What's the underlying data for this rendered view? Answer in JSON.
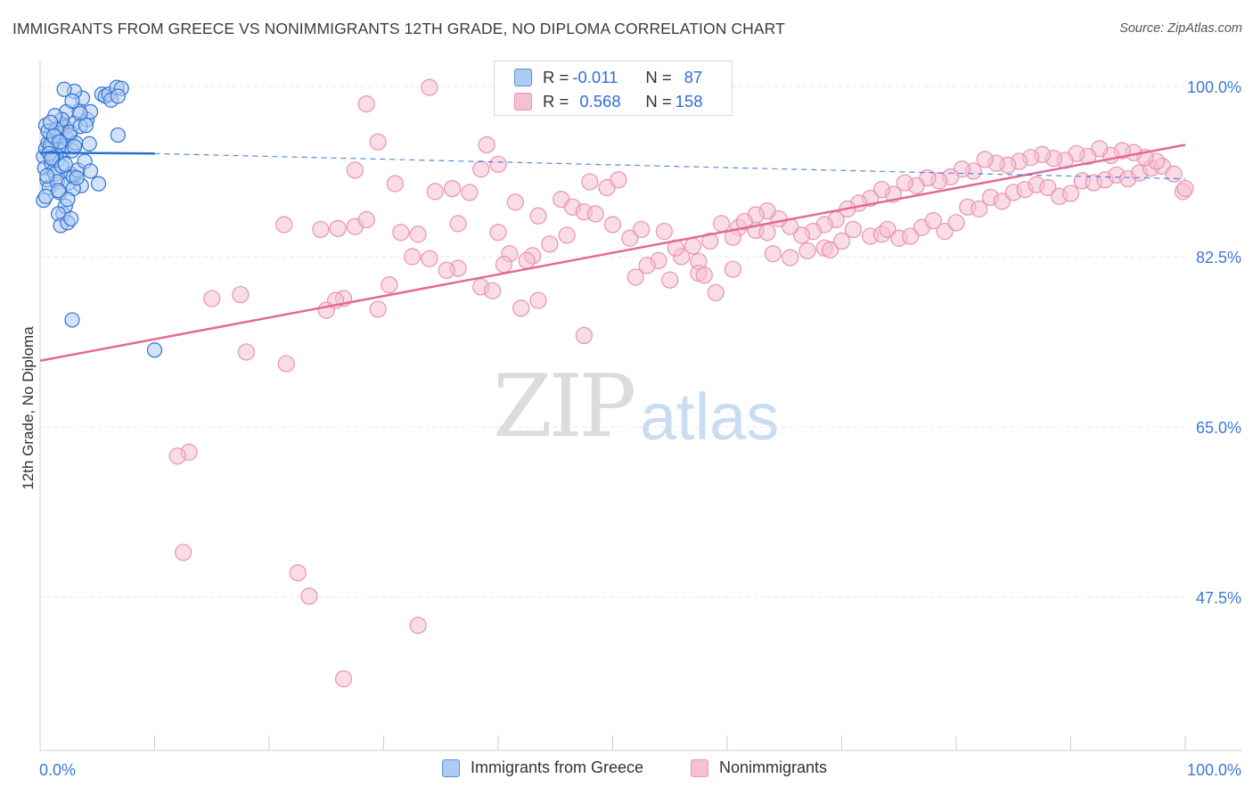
{
  "title": "IMMIGRANTS FROM GREECE VS NONIMMIGRANTS 12TH GRADE, NO DIPLOMA CORRELATION CHART",
  "source": "Source: ZipAtlas.com",
  "watermark": {
    "zip": "ZIP",
    "atlas": "atlas"
  },
  "stats": {
    "row1": {
      "r_label": "R = ",
      "r_value": "-0.011",
      "n_label": "N = ",
      "n_value": "87"
    },
    "row2": {
      "r_label": "R = ",
      "r_value": "0.568",
      "n_label": "N = ",
      "n_value": "158"
    }
  },
  "legend": {
    "series1": "Immigrants from Greece",
    "series2": "Nonimmigrants"
  },
  "colors": {
    "blue_fill": "#aecbf2",
    "blue_stroke": "#2f74d0",
    "blue_line": "#2a6fcf",
    "pink_fill": "#f6c0d2",
    "pink_stroke": "#e893b2",
    "pink_line": "#e36a96",
    "tick_label": "#3b78d8",
    "grid": "#e6e6e6"
  },
  "chart_data": {
    "type": "scatter",
    "title": "IMMIGRANTS FROM GREECE VS NONIMMIGRANTS 12TH GRADE, NO DIPLOMA CORRELATION CHART",
    "xlabel": "",
    "ylabel": "12th Grade, No Diploma",
    "xlim": [
      0,
      100
    ],
    "ylim": [
      30,
      101
    ],
    "x_tick_labels": [
      "0.0%",
      "100.0%"
    ],
    "y_ticks": [
      47.5,
      65.0,
      82.5,
      100.0
    ],
    "y_tick_labels": [
      "47.5%",
      "65.0%",
      "82.5%",
      "100.0%"
    ],
    "grid": true,
    "legend_position": "bottom",
    "series": [
      {
        "name": "Immigrants from Greece",
        "r": -0.011,
        "n": 87,
        "trend": {
          "x": [
            0,
            10
          ],
          "y": [
            93.2,
            93.1
          ]
        },
        "trend_extension": {
          "x": [
            10,
            100
          ],
          "y": [
            93.1,
            90.5
          ]
        },
        "points": [
          [
            0.3,
            92.8
          ],
          [
            0.5,
            93.6
          ],
          [
            0.7,
            94.2
          ],
          [
            0.9,
            95.1
          ],
          [
            1.1,
            93.9
          ],
          [
            1.3,
            94.7
          ],
          [
            1.5,
            92.4
          ],
          [
            1.7,
            95.6
          ],
          [
            1.9,
            94.1
          ],
          [
            2.1,
            93.5
          ],
          [
            0.4,
            91.6
          ],
          [
            0.6,
            90.4
          ],
          [
            0.8,
            89.6
          ],
          [
            1.0,
            92.1
          ],
          [
            1.2,
            91.3
          ],
          [
            1.4,
            93.0
          ],
          [
            1.6,
            94.9
          ],
          [
            1.8,
            95.3
          ],
          [
            2.0,
            96.1
          ],
          [
            2.2,
            95.8
          ],
          [
            2.4,
            94.6
          ],
          [
            2.6,
            95.0
          ],
          [
            2.8,
            93.4
          ],
          [
            3.0,
            96.2
          ],
          [
            0.5,
            96.0
          ],
          [
            0.7,
            95.4
          ],
          [
            0.9,
            94.0
          ],
          [
            1.1,
            92.7
          ],
          [
            1.3,
            91.0
          ],
          [
            1.5,
            90.2
          ],
          [
            1.7,
            89.1
          ],
          [
            2.5,
            90.1
          ],
          [
            2.7,
            91.0
          ],
          [
            2.9,
            90.7
          ],
          [
            3.3,
            91.4
          ],
          [
            3.6,
            89.8
          ],
          [
            3.9,
            92.3
          ],
          [
            4.4,
            91.3
          ],
          [
            5.1,
            90.0
          ],
          [
            2.0,
            86.9
          ],
          [
            2.2,
            87.7
          ],
          [
            1.6,
            86.9
          ],
          [
            1.8,
            85.7
          ],
          [
            2.4,
            86.0
          ],
          [
            2.9,
            89.5
          ],
          [
            3.2,
            90.6
          ],
          [
            0.3,
            88.3
          ],
          [
            0.5,
            88.7
          ],
          [
            3.1,
            94.2
          ],
          [
            3.4,
            97.5
          ],
          [
            3.7,
            98.8
          ],
          [
            4.1,
            96.6
          ],
          [
            4.4,
            97.4
          ],
          [
            3.0,
            99.5
          ],
          [
            2.1,
            99.7
          ],
          [
            2.3,
            97.4
          ],
          [
            4.3,
            94.1
          ],
          [
            5.4,
            99.2
          ],
          [
            5.7,
            99.0
          ],
          [
            6.0,
            99.2
          ],
          [
            6.2,
            98.6
          ],
          [
            6.7,
            99.9
          ],
          [
            7.1,
            99.8
          ],
          [
            6.8,
            99.0
          ],
          [
            2.8,
            98.5
          ],
          [
            3.5,
            97.2
          ],
          [
            1.9,
            96.6
          ],
          [
            2.6,
            95.3
          ],
          [
            1.4,
            95.6
          ],
          [
            1.2,
            94.9
          ],
          [
            0.8,
            93.1
          ],
          [
            1.0,
            92.6
          ],
          [
            0.6,
            90.8
          ],
          [
            2.4,
            88.4
          ],
          [
            2.7,
            86.4
          ],
          [
            1.6,
            89.3
          ],
          [
            1.9,
            91.8
          ],
          [
            6.8,
            95.0
          ],
          [
            2.8,
            76.0
          ],
          [
            10.0,
            72.9
          ],
          [
            3.0,
            93.8
          ],
          [
            3.5,
            95.9
          ],
          [
            1.3,
            97.0
          ],
          [
            0.9,
            96.3
          ],
          [
            2.2,
            92.0
          ],
          [
            4.0,
            96.0
          ],
          [
            1.7,
            94.3
          ]
        ]
      },
      {
        "name": "Nonimmigrants",
        "r": 0.568,
        "n": 158,
        "trend": {
          "x": [
            0,
            100
          ],
          "y": [
            71.8,
            94.0
          ]
        },
        "points": [
          [
            34,
            99.9
          ],
          [
            28.5,
            98.2
          ],
          [
            29.5,
            94.3
          ],
          [
            27.5,
            91.4
          ],
          [
            31,
            90.0
          ],
          [
            34.5,
            89.2
          ],
          [
            36,
            89.5
          ],
          [
            37.5,
            89.1
          ],
          [
            38.5,
            91.5
          ],
          [
            39,
            94.0
          ],
          [
            40,
            92.0
          ],
          [
            31.5,
            85.0
          ],
          [
            33,
            84.8
          ],
          [
            36.5,
            85.9
          ],
          [
            40,
            85.0
          ],
          [
            41.5,
            88.1
          ],
          [
            43.5,
            86.7
          ],
          [
            45.5,
            88.4
          ],
          [
            46.5,
            87.6
          ],
          [
            48,
            90.2
          ],
          [
            49.5,
            89.6
          ],
          [
            50.5,
            90.4
          ],
          [
            47.5,
            87.1
          ],
          [
            48.5,
            86.9
          ],
          [
            46,
            84.7
          ],
          [
            44.5,
            83.8
          ],
          [
            43,
            82.6
          ],
          [
            42.5,
            82.1
          ],
          [
            41,
            82.8
          ],
          [
            40.5,
            81.7
          ],
          [
            38.5,
            79.4
          ],
          [
            36.5,
            81.3
          ],
          [
            35.5,
            81.1
          ],
          [
            34,
            82.3
          ],
          [
            32.5,
            82.5
          ],
          [
            30.5,
            79.6
          ],
          [
            29.5,
            77.1
          ],
          [
            26.5,
            78.2
          ],
          [
            25.8,
            78.0
          ],
          [
            25,
            77.0
          ],
          [
            26,
            85.4
          ],
          [
            27.5,
            85.6
          ],
          [
            28.5,
            86.3
          ],
          [
            21.3,
            85.8
          ],
          [
            17.5,
            78.6
          ],
          [
            18,
            72.7
          ],
          [
            21.5,
            71.5
          ],
          [
            24.5,
            85.3
          ],
          [
            15,
            78.2
          ],
          [
            13,
            62.4
          ],
          [
            12,
            62.0
          ],
          [
            12.5,
            52.1
          ],
          [
            22.5,
            50.0
          ],
          [
            23.5,
            47.6
          ],
          [
            26.5,
            39.1
          ],
          [
            33,
            44.6
          ],
          [
            39.5,
            79.0
          ],
          [
            42,
            77.2
          ],
          [
            43.5,
            78.0
          ],
          [
            47.5,
            74.4
          ],
          [
            50,
            85.8
          ],
          [
            51.5,
            84.4
          ],
          [
            52.5,
            85.3
          ],
          [
            54.5,
            85.1
          ],
          [
            56,
            82.5
          ],
          [
            57.5,
            82.0
          ],
          [
            59,
            78.8
          ],
          [
            60.5,
            81.2
          ],
          [
            61,
            85.5
          ],
          [
            62.5,
            85.2
          ],
          [
            63.5,
            85.0
          ],
          [
            64,
            82.8
          ],
          [
            65.5,
            82.4
          ],
          [
            67,
            83.1
          ],
          [
            68.5,
            83.4
          ],
          [
            69,
            83.2
          ],
          [
            70,
            84.1
          ],
          [
            71,
            85.3
          ],
          [
            72.5,
            84.6
          ],
          [
            73.5,
            84.8
          ],
          [
            74,
            85.3
          ],
          [
            75,
            84.4
          ],
          [
            76,
            84.6
          ],
          [
            77,
            85.5
          ],
          [
            78,
            86.2
          ],
          [
            79,
            85.1
          ],
          [
            80,
            86.0
          ],
          [
            81,
            87.6
          ],
          [
            82,
            87.4
          ],
          [
            83,
            88.6
          ],
          [
            84,
            88.2
          ],
          [
            85,
            89.1
          ],
          [
            86,
            89.4
          ],
          [
            87,
            89.9
          ],
          [
            88,
            89.6
          ],
          [
            89,
            88.7
          ],
          [
            90,
            89.0
          ],
          [
            91,
            90.3
          ],
          [
            92,
            90.1
          ],
          [
            93,
            90.4
          ],
          [
            94,
            90.9
          ],
          [
            95,
            90.5
          ],
          [
            96,
            91.1
          ],
          [
            97,
            91.6
          ],
          [
            98,
            91.8
          ],
          [
            99,
            91.0
          ],
          [
            99.8,
            89.2
          ],
          [
            100,
            89.5
          ],
          [
            97.5,
            92.3
          ],
          [
            96.5,
            92.7
          ],
          [
            95.5,
            93.2
          ],
          [
            94.5,
            93.4
          ],
          [
            93.5,
            92.9
          ],
          [
            92.5,
            93.6
          ],
          [
            91.5,
            92.8
          ],
          [
            90.5,
            93.1
          ],
          [
            89.5,
            92.4
          ],
          [
            88.5,
            92.6
          ],
          [
            87.5,
            93.0
          ],
          [
            86.5,
            92.7
          ],
          [
            85.5,
            92.3
          ],
          [
            84.5,
            91.9
          ],
          [
            83.5,
            92.1
          ],
          [
            82.5,
            92.5
          ],
          [
            81.5,
            91.3
          ],
          [
            80.5,
            91.5
          ],
          [
            79.5,
            90.7
          ],
          [
            78.5,
            90.3
          ],
          [
            77.5,
            90.6
          ],
          [
            76.5,
            89.8
          ],
          [
            75.5,
            90.1
          ],
          [
            74.5,
            88.9
          ],
          [
            73.5,
            89.4
          ],
          [
            72.5,
            88.5
          ],
          [
            71.5,
            88.0
          ],
          [
            70.5,
            87.4
          ],
          [
            69.5,
            86.3
          ],
          [
            68.5,
            85.8
          ],
          [
            67.5,
            85.1
          ],
          [
            66.5,
            84.7
          ],
          [
            65.5,
            85.6
          ],
          [
            64.5,
            86.4
          ],
          [
            63.5,
            87.2
          ],
          [
            62.5,
            86.8
          ],
          [
            61.5,
            86.1
          ],
          [
            60.5,
            84.5
          ],
          [
            59.5,
            85.9
          ],
          [
            58.5,
            84.1
          ],
          [
            57,
            83.6
          ],
          [
            55.5,
            83.4
          ],
          [
            54,
            82.1
          ],
          [
            53,
            81.6
          ],
          [
            52,
            80.4
          ],
          [
            55,
            80.1
          ],
          [
            57.5,
            80.8
          ],
          [
            58,
            80.6
          ]
        ]
      }
    ]
  }
}
